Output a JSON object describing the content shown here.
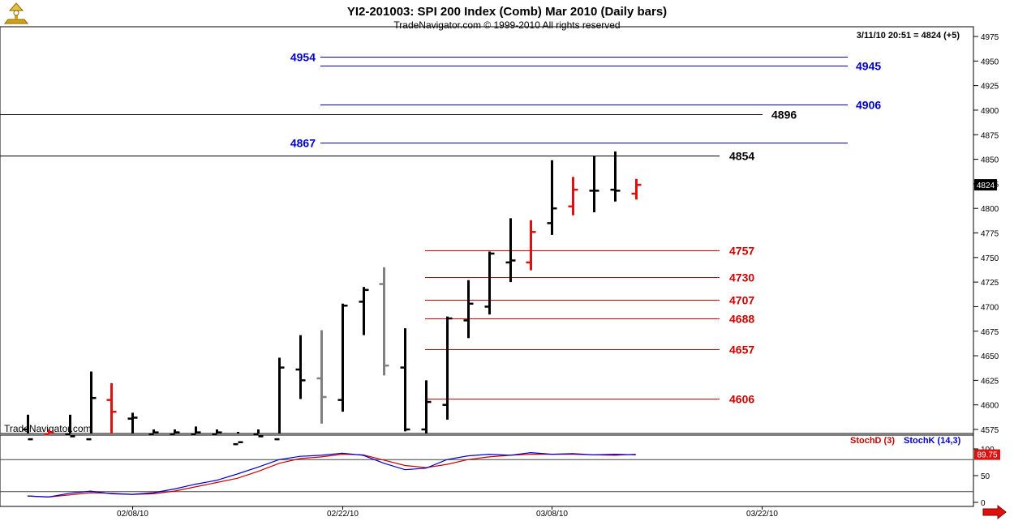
{
  "header": {
    "title": "YI2-201003:  SPI 200 Index (Comb) Mar 2010  (Daily bars)",
    "subtitle": "TradeNavigator.com © 1999-2010 All rights reserved",
    "status": "3/11/10 20:51 = 4824 (+5)",
    "watermark": "TradeNavigator.com"
  },
  "colors": {
    "background": "#ffffff",
    "up_bar": "#000000",
    "down_bar": "#e01010",
    "neutral_bar": "#808080",
    "resistance_blue": "#0000cc",
    "pivot_black": "#000000",
    "support_red": "#cc0000",
    "stoch_d": "#cc0000",
    "stoch_k": "#0000cc",
    "price_box": "#000000",
    "stoch_box": "#e01010",
    "nav_arrow": "#e01010"
  },
  "chart_data": [
    {
      "type": "ohlc",
      "title": "YI2-201003:  SPI 200 Index (Comb) Mar 2010  (Daily bars)",
      "ylim": [
        4560,
        4980
      ],
      "y_ticks": [
        4575,
        4600,
        4625,
        4650,
        4675,
        4700,
        4725,
        4750,
        4775,
        4800,
        4825,
        4850,
        4875,
        4900,
        4925,
        4950,
        4975
      ],
      "x_ticks": [
        {
          "label": "02/08/10",
          "index": 5
        },
        {
          "label": "02/22/10",
          "index": 15
        },
        {
          "label": "03/08/10",
          "index": 25
        },
        {
          "label": "03/22/10",
          "index": 35
        }
      ],
      "last_price_label": "4824",
      "bars": [
        {
          "o": 4575,
          "h": 4590,
          "l": 4560,
          "c": 4565,
          "color": "up"
        },
        {
          "o": 4570,
          "h": 4575,
          "l": 4560,
          "c": 4572,
          "color": "down"
        },
        {
          "o": 4570,
          "h": 4590,
          "l": 4560,
          "c": 4568,
          "color": "up"
        },
        {
          "o": 4565,
          "h": 4634,
          "l": 4562,
          "c": 4607,
          "color": "up"
        },
        {
          "o": 4605,
          "h": 4622,
          "l": 4568,
          "c": 4593,
          "color": "down"
        },
        {
          "o": 4586,
          "h": 4592,
          "l": 4560,
          "c": 4587,
          "color": "up"
        },
        {
          "o": 4570,
          "h": 4575,
          "l": 4560,
          "c": 4572,
          "color": "up"
        },
        {
          "o": 4570,
          "h": 4575,
          "l": 4560,
          "c": 4572,
          "color": "up"
        },
        {
          "o": 4570,
          "h": 4578,
          "l": 4560,
          "c": 4572,
          "color": "up"
        },
        {
          "o": 4570,
          "h": 4575,
          "l": 4560,
          "c": 4572,
          "color": "up"
        },
        {
          "o": 4560,
          "h": 4565,
          "l": 4560,
          "c": 4562,
          "color": "up"
        },
        {
          "o": 4570,
          "h": 4575,
          "l": 4560,
          "c": 4568,
          "color": "up"
        },
        {
          "o": 4565,
          "h": 4648,
          "l": 4560,
          "c": 4638,
          "color": "up"
        },
        {
          "o": 4636,
          "h": 4671,
          "l": 4606,
          "c": 4625,
          "color": "up"
        },
        {
          "o": 4627,
          "h": 4676,
          "l": 4581,
          "c": 4608,
          "color": "neutral"
        },
        {
          "o": 4605,
          "h": 4703,
          "l": 4593,
          "c": 4701,
          "color": "up"
        },
        {
          "o": 4705,
          "h": 4720,
          "l": 4671,
          "c": 4717,
          "color": "up"
        },
        {
          "o": 4723,
          "h": 4740,
          "l": 4630,
          "c": 4640,
          "color": "neutral"
        },
        {
          "o": 4638,
          "h": 4678,
          "l": 4573,
          "c": 4575,
          "color": "up"
        },
        {
          "o": 4575,
          "h": 4625,
          "l": 4560,
          "c": 4603,
          "color": "up"
        },
        {
          "o": 4600,
          "h": 4690,
          "l": 4585,
          "c": 4688,
          "color": "up"
        },
        {
          "o": 4686,
          "h": 4727,
          "l": 4668,
          "c": 4703,
          "color": "up"
        },
        {
          "o": 4700,
          "h": 4756,
          "l": 4692,
          "c": 4754,
          "color": "up"
        },
        {
          "o": 4745,
          "h": 4790,
          "l": 4725,
          "c": 4747,
          "color": "up"
        },
        {
          "o": 4745,
          "h": 4788,
          "l": 4737,
          "c": 4776,
          "color": "down"
        },
        {
          "o": 4785,
          "h": 4849,
          "l": 4773,
          "c": 4800,
          "color": "up"
        },
        {
          "o": 4802,
          "h": 4832,
          "l": 4793,
          "c": 4819,
          "color": "down"
        },
        {
          "o": 4818,
          "h": 4853,
          "l": 4796,
          "c": 4818,
          "color": "up"
        },
        {
          "o": 4819,
          "h": 4858,
          "l": 4807,
          "c": 4818,
          "color": "up"
        },
        {
          "o": 4815,
          "h": 4830,
          "l": 4809,
          "c": 4824,
          "color": "down"
        }
      ],
      "levels": [
        {
          "label": "4954",
          "value": 4954,
          "color": "blue"
        },
        {
          "label": "4945",
          "value": 4945,
          "color": "blue"
        },
        {
          "label": "4906",
          "value": 4906,
          "color": "blue"
        },
        {
          "label": "4896",
          "value": 4896,
          "color": "black"
        },
        {
          "label": "4867",
          "value": 4867,
          "color": "blue"
        },
        {
          "label": "4854",
          "value": 4854,
          "color": "black"
        },
        {
          "label": "4757",
          "value": 4757,
          "color": "red"
        },
        {
          "label": "4730",
          "value": 4730,
          "color": "red"
        },
        {
          "label": "4707",
          "value": 4707,
          "color": "red"
        },
        {
          "label": "4688",
          "value": 4688,
          "color": "red"
        },
        {
          "label": "4657",
          "value": 4657,
          "color": "red"
        },
        {
          "label": "4606",
          "value": 4606,
          "color": "red"
        }
      ]
    },
    {
      "type": "line",
      "ylim": [
        -5,
        105
      ],
      "y_ticks": [
        0,
        50,
        100
      ],
      "ref_lines": [
        20,
        80
      ],
      "last_value_label": "89.75",
      "legend": [
        "StochD (3)",
        "StochK (14,3)"
      ],
      "series": [
        {
          "name": "StochD (3)",
          "color": "red",
          "values": [
            12,
            10,
            14,
            18,
            17,
            15,
            16,
            21,
            29,
            37,
            45,
            58,
            73,
            82,
            85,
            90,
            89,
            79,
            69,
            65,
            71,
            80,
            85,
            88,
            90,
            90,
            90,
            89,
            88,
            90
          ]
        },
        {
          "name": "StochK (14,3)",
          "color": "blue",
          "values": [
            12,
            10,
            17,
            21,
            16,
            15,
            18,
            25,
            34,
            41,
            53,
            66,
            80,
            86,
            88,
            92,
            88,
            73,
            61,
            64,
            80,
            87,
            90,
            88,
            93,
            90,
            91,
            89,
            90,
            89
          ]
        }
      ]
    }
  ]
}
